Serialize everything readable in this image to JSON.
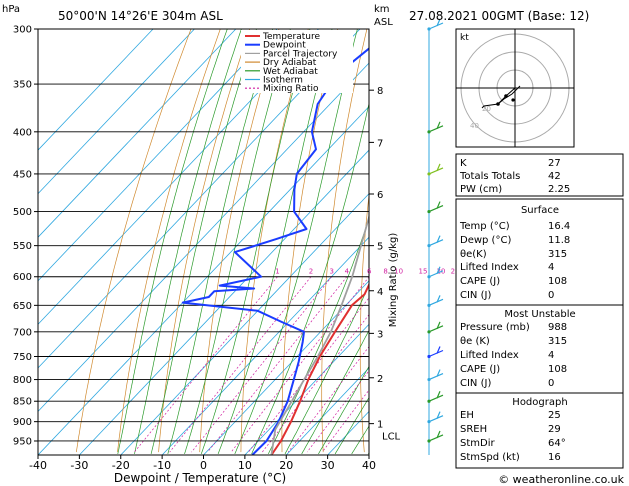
{
  "header": {
    "location": "50°00'N  14°26'E  304m  ASL",
    "datetime": "27.08.2021  00GMT  (Base: 12)",
    "hpa_label": "hPa",
    "km_label": "km",
    "asl_label": "ASL"
  },
  "colors": {
    "temperature": "#e03030",
    "dewpoint": "#1a3cff",
    "parcel": "#a0a0a0",
    "dry_adiabat": "#d08a30",
    "wet_adiabat": "#2a9a2a",
    "isotherm": "#30a8e0",
    "mixing_ratio": "#d01ea0"
  },
  "chart_data": {
    "type": "line",
    "title": "",
    "xlabel": "Dewpoint / Temperature (°C)",
    "ylabel": "",
    "ylabel_right": "Mixing Ratio (g/kg)",
    "xlim": [
      -40,
      40
    ],
    "x_ticks": [
      -40,
      -30,
      -20,
      -10,
      0,
      10,
      20,
      30,
      40
    ],
    "pressure_levels": [
      300,
      350,
      400,
      450,
      500,
      550,
      600,
      650,
      700,
      750,
      800,
      850,
      900,
      950
    ],
    "km_ticks": [
      {
        "label": "8",
        "p": 356
      },
      {
        "label": "7",
        "p": 412
      },
      {
        "label": "6",
        "p": 476
      },
      {
        "label": "5",
        "p": 550
      },
      {
        "label": "4",
        "p": 624
      },
      {
        "label": "3",
        "p": 703
      },
      {
        "label": "2",
        "p": 796
      },
      {
        "label": "1",
        "p": 905
      }
    ],
    "lcl": {
      "label": "LCL",
      "p": 920
    },
    "mixing_ratio_labels": [
      "1",
      "2",
      "3",
      "4",
      "6",
      "8",
      "10",
      "15",
      "20",
      "25"
    ],
    "mixing_ratio_values": [
      1,
      2,
      3,
      4,
      6,
      8,
      10,
      15,
      20,
      25
    ],
    "legend": [
      "Temperature",
      "Dewpoint",
      "Parcel Trajectory",
      "Dry Adiabat",
      "Wet Adiabat",
      "Isotherm",
      "Mixing Ratio"
    ],
    "legend_position": "top-right",
    "series": [
      {
        "name": "Temperature",
        "points": [
          [
            300,
            -37
          ],
          [
            350,
            -30
          ],
          [
            400,
            -22.5
          ],
          [
            450,
            -16
          ],
          [
            500,
            -10
          ],
          [
            530,
            -8
          ],
          [
            560,
            -5.5
          ],
          [
            600,
            0
          ],
          [
            630,
            2
          ],
          [
            650,
            1.5
          ],
          [
            700,
            3.5
          ],
          [
            750,
            5.5
          ],
          [
            800,
            8
          ],
          [
            850,
            11
          ],
          [
            900,
            13.5
          ],
          [
            950,
            15.5
          ],
          [
            988,
            16.4
          ]
        ]
      },
      {
        "name": "Dewpoint",
        "points": [
          [
            300,
            -52
          ],
          [
            340,
            -55
          ],
          [
            370,
            -53
          ],
          [
            400,
            -48
          ],
          [
            420,
            -43
          ],
          [
            450,
            -42
          ],
          [
            470,
            -39
          ],
          [
            500,
            -34
          ],
          [
            525,
            -27
          ],
          [
            540,
            -32
          ],
          [
            560,
            -39
          ],
          [
            600,
            -27
          ],
          [
            615,
            -35
          ],
          [
            620,
            -26
          ],
          [
            625,
            -35
          ],
          [
            635,
            -35
          ],
          [
            645,
            -40
          ],
          [
            660,
            -20
          ],
          [
            680,
            -12
          ],
          [
            700,
            -4
          ],
          [
            720,
            -2
          ],
          [
            760,
            1.5
          ],
          [
            800,
            4.5
          ],
          [
            850,
            8
          ],
          [
            900,
            10.5
          ],
          [
            950,
            12
          ],
          [
            988,
            11.8
          ]
        ]
      },
      {
        "name": "Parcel Trajectory",
        "points": [
          [
            988,
            16.4
          ],
          [
            920,
            11.5
          ],
          [
            850,
            9
          ],
          [
            800,
            7
          ],
          [
            750,
            5
          ],
          [
            700,
            2.5
          ],
          [
            650,
            -1
          ],
          [
            600,
            -5
          ],
          [
            550,
            -10
          ],
          [
            500,
            -15.5
          ],
          [
            450,
            -22
          ],
          [
            400,
            -29.5
          ],
          [
            350,
            -38
          ],
          [
            300,
            -48
          ]
        ]
      }
    ]
  },
  "hodograph": {
    "unit_label": "kt",
    "ring_labels": [
      "20",
      "40"
    ]
  },
  "indices": [
    {
      "label": "K",
      "value": "27"
    },
    {
      "label": "Totals Totals",
      "value": "42"
    },
    {
      "label": "PW (cm)",
      "value": "2.25"
    }
  ],
  "surface": {
    "title": "Surface",
    "rows": [
      {
        "label": "Temp (°C)",
        "value": "16.4"
      },
      {
        "label": "Dewp (°C)",
        "value": "11.8"
      },
      {
        "label": "θe(K)",
        "value": "315"
      },
      {
        "label": "Lifted Index",
        "value": "4"
      },
      {
        "label": "CAPE (J)",
        "value": "108"
      },
      {
        "label": "CIN (J)",
        "value": "0"
      }
    ]
  },
  "most_unstable": {
    "title": "Most Unstable",
    "rows": [
      {
        "label": "Pressure (mb)",
        "value": "988"
      },
      {
        "label": "θe (K)",
        "value": "315"
      },
      {
        "label": "Lifted Index",
        "value": "4"
      },
      {
        "label": "CAPE (J)",
        "value": "108"
      },
      {
        "label": "CIN (J)",
        "value": "0"
      }
    ]
  },
  "hodograph_table": {
    "title": "Hodograph",
    "rows": [
      {
        "label": "EH",
        "value": "25"
      },
      {
        "label": "SREH",
        "value": "29"
      },
      {
        "label": "StmDir",
        "value": "64°"
      },
      {
        "label": "StmSpd (kt)",
        "value": "16"
      }
    ]
  },
  "footer": {
    "copyright": "© weatheronline.co.uk"
  }
}
